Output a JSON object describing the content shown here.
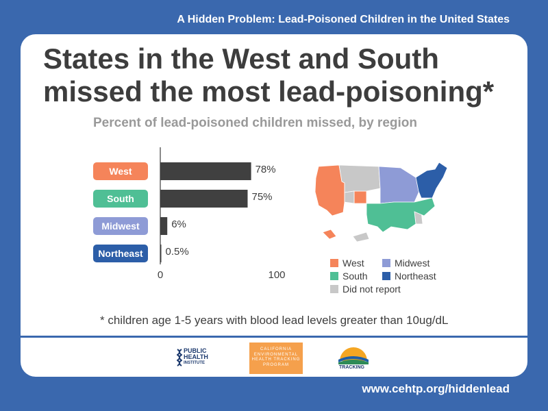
{
  "banner": {
    "title": "A Hidden Problem: Lead-Poisoned Children in the United States",
    "url": "www.cehtp.org/hiddenlead"
  },
  "headline": "States in the West and South missed the most lead-poisoning*",
  "chart_data": {
    "type": "bar",
    "orientation": "horizontal",
    "title": "Percent of lead-poisoned children missed, by region",
    "categories": [
      "West",
      "South",
      "Midwest",
      "Northeast"
    ],
    "values": [
      78,
      75,
      6,
      0.5
    ],
    "value_labels": [
      "78%",
      "75%",
      "6%",
      "0.5%"
    ],
    "category_colors": [
      "#f5845a",
      "#4fbf95",
      "#8e9bd6",
      "#2c5ea8"
    ],
    "bar_color": "#404040",
    "xlim": [
      0,
      100
    ],
    "xticks": [
      "0",
      "100"
    ],
    "grid": false
  },
  "map": {
    "legend": [
      {
        "label": "West",
        "color": "#f5845a"
      },
      {
        "label": "Midwest",
        "color": "#8e9bd6"
      },
      {
        "label": "South",
        "color": "#4fbf95"
      },
      {
        "label": "Northeast",
        "color": "#2c5ea8"
      },
      {
        "label": "Did not report",
        "color": "#c8c8c8"
      }
    ]
  },
  "footnote": "* children age 1-5 years with blood lead levels greater than 10ug/dL",
  "logos": {
    "phi": [
      "PUBLIC",
      "HEALTH",
      "INSTITUTE"
    ],
    "cehtp": [
      "CALIFORNIA",
      "ENVIRONMENTAL",
      "HEALTH TRACKING",
      "PROGRAM"
    ],
    "tracking": "TRACKING"
  }
}
